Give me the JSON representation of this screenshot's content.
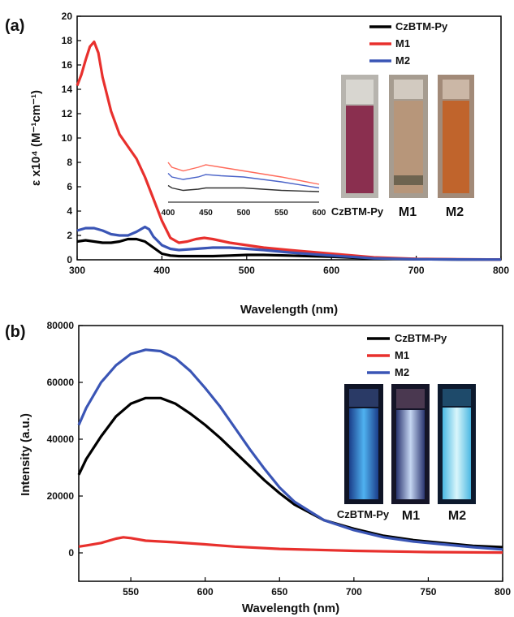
{
  "chart_data": [
    {
      "panel_label": "(a)",
      "type": "line",
      "xlabel": "Wavelength (nm)",
      "ylabel": "ε x10⁴ (M⁻¹cm⁻¹)",
      "xlim": [
        300,
        800
      ],
      "ylim": [
        0,
        20
      ],
      "xticks": [
        300,
        400,
        500,
        600,
        700,
        800
      ],
      "yticks": [
        0,
        2,
        4,
        6,
        8,
        10,
        12,
        14,
        16,
        18,
        20
      ],
      "legend_placement": "top-right",
      "series": [
        {
          "name": "CzBTM-Py",
          "color": "#000000",
          "x": [
            300,
            310,
            320,
            330,
            340,
            350,
            360,
            370,
            380,
            390,
            400,
            410,
            420,
            440,
            460,
            480,
            500,
            520,
            550,
            600,
            650,
            700,
            750,
            800
          ],
          "y": [
            1.5,
            1.6,
            1.5,
            1.4,
            1.4,
            1.5,
            1.7,
            1.7,
            1.5,
            1.0,
            0.5,
            0.35,
            0.3,
            0.3,
            0.3,
            0.35,
            0.4,
            0.4,
            0.35,
            0.25,
            0.1,
            0.05,
            0.03,
            0.02
          ]
        },
        {
          "name": "M1",
          "color": "#e8302d",
          "x": [
            300,
            305,
            310,
            315,
            320,
            325,
            330,
            340,
            350,
            360,
            370,
            380,
            390,
            400,
            410,
            420,
            430,
            440,
            450,
            460,
            480,
            500,
            520,
            550,
            600,
            650,
            700,
            750,
            800
          ],
          "y": [
            14.3,
            15.2,
            16.4,
            17.5,
            17.9,
            17.0,
            15.0,
            12.2,
            10.3,
            9.3,
            8.3,
            6.8,
            5.0,
            3.2,
            1.8,
            1.4,
            1.5,
            1.7,
            1.8,
            1.7,
            1.4,
            1.2,
            1.0,
            0.8,
            0.5,
            0.2,
            0.08,
            0.04,
            0.02
          ]
        },
        {
          "name": "M2",
          "color": "#3a55b5",
          "x": [
            300,
            310,
            320,
            330,
            340,
            350,
            360,
            370,
            380,
            385,
            390,
            400,
            410,
            420,
            440,
            460,
            480,
            500,
            520,
            550,
            600,
            650,
            700,
            750,
            800
          ],
          "y": [
            2.4,
            2.6,
            2.6,
            2.4,
            2.1,
            2.0,
            2.0,
            2.3,
            2.7,
            2.5,
            1.9,
            1.2,
            0.9,
            0.8,
            0.9,
            1.0,
            1.0,
            0.9,
            0.8,
            0.6,
            0.35,
            0.12,
            0.05,
            0.03,
            0.02
          ]
        }
      ],
      "inset": {
        "xlim": [
          400,
          600
        ],
        "xticks": [
          400,
          450,
          500,
          550,
          600
        ],
        "series": [
          {
            "color": "#ff6a5a",
            "x": [
              400,
              405,
              420,
              440,
              450,
              470,
              500,
              550,
              600
            ],
            "y": [
              8.0,
              7.6,
              7.3,
              7.6,
              7.8,
              7.6,
              7.3,
              6.8,
              6.2
            ]
          },
          {
            "color": "#4a63c8",
            "x": [
              400,
              405,
              420,
              440,
              450,
              470,
              500,
              550,
              600
            ],
            "y": [
              7.1,
              6.8,
              6.6,
              6.8,
              7.0,
              6.9,
              6.8,
              6.4,
              5.9
            ]
          },
          {
            "color": "#333333",
            "x": [
              400,
              405,
              420,
              440,
              450,
              470,
              500,
              550,
              600
            ],
            "y": [
              6.1,
              5.9,
              5.7,
              5.8,
              5.9,
              5.9,
              5.9,
              5.7,
              5.6
            ]
          }
        ]
      },
      "vial_labels": [
        "CzBTM-Py",
        "M1",
        "M2"
      ],
      "vial_colors": [
        "#8a2f4f",
        "#b7967a",
        "#c0642c"
      ]
    },
    {
      "panel_label": "(b)",
      "type": "line",
      "xlabel": "Wavelength (nm)",
      "ylabel": "Intensity (a.u.)",
      "xlim": [
        515,
        800
      ],
      "ylim": [
        -10000,
        80000
      ],
      "xticks": [
        550,
        600,
        650,
        700,
        750,
        800
      ],
      "yticks": [
        0,
        20000,
        40000,
        60000,
        80000
      ],
      "legend_placement": "top-right",
      "series": [
        {
          "name": "CzBTM-Py",
          "color": "#000000",
          "x": [
            515,
            520,
            530,
            540,
            550,
            560,
            570,
            580,
            590,
            600,
            610,
            620,
            630,
            640,
            650,
            660,
            680,
            700,
            720,
            740,
            760,
            780,
            800
          ],
          "y": [
            27500,
            33000,
            41000,
            48000,
            52500,
            54500,
            54500,
            52500,
            49000,
            45000,
            40500,
            35500,
            30500,
            25500,
            21000,
            17000,
            11500,
            8500,
            6000,
            4500,
            3500,
            2500,
            2000
          ]
        },
        {
          "name": "M1",
          "color": "#e8302d",
          "x": [
            515,
            520,
            530,
            540,
            545,
            550,
            560,
            580,
            600,
            620,
            650,
            700,
            750,
            800
          ],
          "y": [
            2200,
            2600,
            3500,
            5000,
            5500,
            5200,
            4300,
            3700,
            3000,
            2200,
            1400,
            700,
            300,
            100
          ]
        },
        {
          "name": "M2",
          "color": "#3a55b5",
          "x": [
            515,
            520,
            530,
            540,
            550,
            560,
            570,
            580,
            590,
            600,
            610,
            620,
            630,
            640,
            650,
            660,
            680,
            700,
            720,
            740,
            760,
            780,
            800
          ],
          "y": [
            45000,
            51000,
            60000,
            66000,
            70000,
            71500,
            71000,
            68500,
            64000,
            58000,
            51500,
            44000,
            36500,
            29500,
            23000,
            18000,
            11500,
            8000,
            5500,
            4000,
            3000,
            2000,
            1200
          ]
        }
      ],
      "vial_labels": [
        "CzBTM-Py",
        "M1",
        "M2"
      ],
      "vial_colors": [
        "#3d8fd6",
        "#8fa9d9",
        "#a5e4f2"
      ]
    }
  ]
}
